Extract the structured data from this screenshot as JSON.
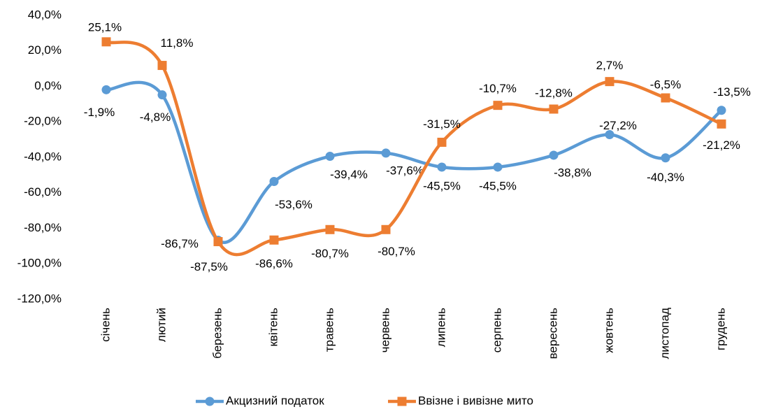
{
  "chart_data": {
    "type": "line",
    "categories": [
      "січень",
      "лютий",
      "березень",
      "квітень",
      "травень",
      "червень",
      "липень",
      "серпень",
      "вересень",
      "жовтень",
      "листопад",
      "грудень"
    ],
    "series": [
      {
        "name": "Акцизний податок",
        "color": "#5b9bd5",
        "values": [
          -1.9,
          -4.8,
          -86.7,
          -53.6,
          -39.4,
          -37.6,
          -45.5,
          -45.5,
          -38.8,
          -27.2,
          -40.3,
          -13.5
        ],
        "value_labels": [
          "-1,9%",
          "-4,8%",
          "-86,7%",
          "-53,6%",
          "-39,4%",
          "-37,6%",
          "-45,5%",
          "-45,5%",
          "-38,8%",
          "-27,2%",
          "-40,3%",
          "-13,5%"
        ]
      },
      {
        "name": "Ввізне і вивізне мито",
        "color": "#ed7d31",
        "values": [
          25.1,
          11.8,
          -87.5,
          -86.6,
          -80.7,
          -80.7,
          -31.5,
          -10.7,
          -12.8,
          2.7,
          -6.5,
          -21.2
        ],
        "value_labels": [
          "25,1%",
          "11,8%",
          "-87,5%",
          "-86,6%",
          "-80,7%",
          "-80,7%",
          "-31,5%",
          "-10,7%",
          "-12,8%",
          "2,7%",
          "-6,5%",
          "-21,2%"
        ]
      }
    ],
    "ylim": [
      -120,
      40
    ],
    "yticks": [
      {
        "value": -120,
        "label": "-120,0%"
      },
      {
        "value": -100,
        "label": "-100,0%"
      },
      {
        "value": -80,
        "label": "-80,0%"
      },
      {
        "value": -60,
        "label": "-60,0%"
      },
      {
        "value": -40,
        "label": "-40,0%"
      },
      {
        "value": -20,
        "label": "-20,0%"
      },
      {
        "value": 0,
        "label": "0,0%"
      },
      {
        "value": 20,
        "label": "20,0%"
      },
      {
        "value": 40,
        "label": "40,0%"
      }
    ],
    "grid": false,
    "smooth": true,
    "legend": "bottom"
  }
}
